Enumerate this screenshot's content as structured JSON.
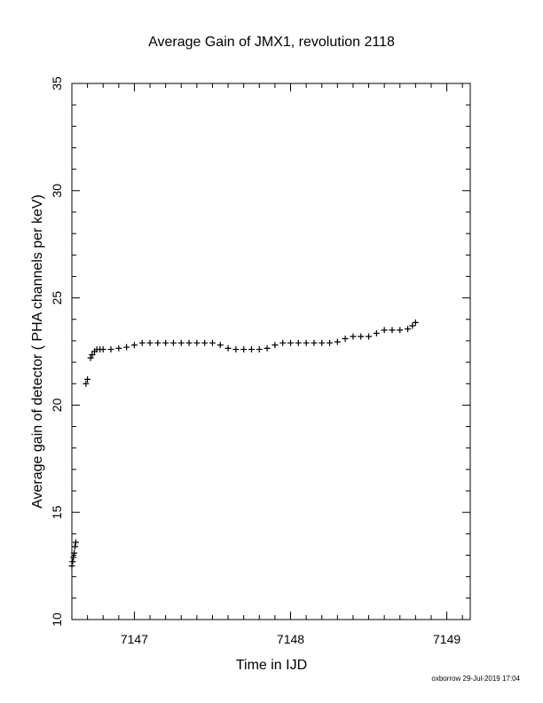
{
  "chart_data": {
    "type": "scatter",
    "title": "Average Gain of JMX1, revolution 2118",
    "xlabel": "Time in IJD",
    "ylabel": "Average gain of detector ( PHA channels per keV)",
    "xlim": [
      7146.6,
      7149.15
    ],
    "ylim": [
      10,
      35
    ],
    "xticks": [
      7147,
      7148,
      7149
    ],
    "yticks": [
      10,
      15,
      20,
      25,
      30,
      35
    ],
    "marker": "+",
    "grid": false,
    "series": [
      {
        "x": [
          7146.6,
          7146.605,
          7146.61,
          7146.615,
          7146.62,
          7146.625,
          7146.69,
          7146.7,
          7146.72,
          7146.73,
          7146.745,
          7146.76,
          7146.78,
          7146.8,
          7146.85,
          7146.9,
          7146.95,
          7147.0,
          7147.05,
          7147.1,
          7147.15,
          7147.2,
          7147.25,
          7147.3,
          7147.35,
          7147.4,
          7147.45,
          7147.5,
          7147.55,
          7147.6,
          7147.65,
          7147.7,
          7147.75,
          7147.8,
          7147.85,
          7147.9,
          7147.95,
          7148.0,
          7148.05,
          7148.1,
          7148.15,
          7148.2,
          7148.25,
          7148.3,
          7148.35,
          7148.4,
          7148.45,
          7148.5,
          7148.55,
          7148.6,
          7148.65,
          7148.7,
          7148.75,
          7148.78,
          7148.8
        ],
        "y": [
          12.5,
          12.7,
          12.9,
          13.1,
          13.4,
          13.6,
          21.0,
          21.2,
          22.2,
          22.35,
          22.5,
          22.6,
          22.6,
          22.6,
          22.6,
          22.65,
          22.7,
          22.8,
          22.9,
          22.9,
          22.9,
          22.9,
          22.9,
          22.9,
          22.9,
          22.9,
          22.9,
          22.9,
          22.8,
          22.65,
          22.6,
          22.6,
          22.6,
          22.6,
          22.65,
          22.8,
          22.9,
          22.9,
          22.9,
          22.9,
          22.9,
          22.9,
          22.9,
          22.95,
          23.1,
          23.2,
          23.2,
          23.2,
          23.35,
          23.5,
          23.5,
          23.5,
          23.55,
          23.7,
          23.85
        ]
      }
    ]
  },
  "footer": "oxborrow 29-Jul-2019 17:04"
}
